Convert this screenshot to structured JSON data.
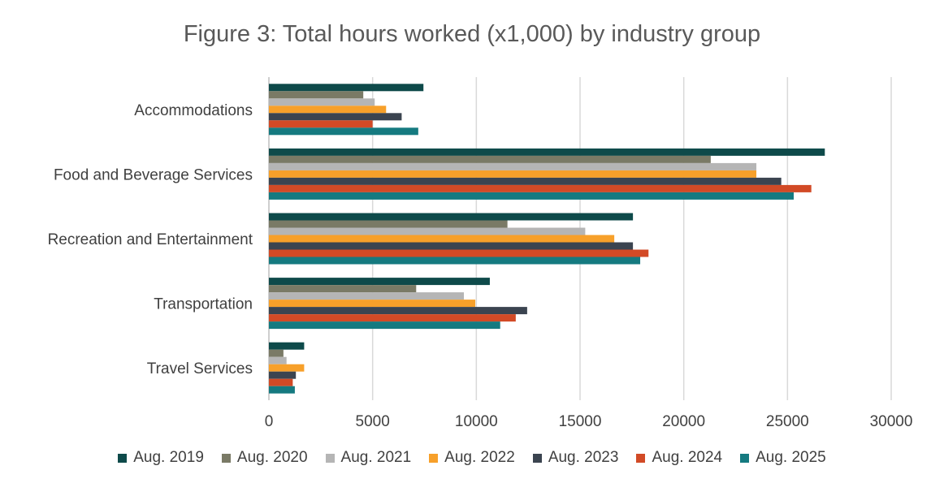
{
  "chart_data": {
    "type": "bar",
    "orientation": "horizontal",
    "title": "Figure 3: Total hours worked (x1,000) by industry group",
    "xlabel": "",
    "ylabel": "",
    "categories": [
      "Accommodations",
      "Food and Beverage Services",
      "Recreation and Entertainment",
      "Transportation",
      "Travel Services"
    ],
    "xlim": [
      0,
      30000
    ],
    "xticks": [
      0,
      5000,
      10000,
      15000,
      20000,
      25000,
      30000
    ],
    "grid": true,
    "legend_position": "bottom",
    "series": [
      {
        "name": "Aug. 2019",
        "color": "#0e4a4a",
        "values": [
          7450,
          26800,
          17550,
          10650,
          1700
        ]
      },
      {
        "name": "Aug. 2020",
        "color": "#7a7a66",
        "values": [
          4550,
          21300,
          11500,
          7100,
          700
        ]
      },
      {
        "name": "Aug. 2021",
        "color": "#b5b5b5",
        "values": [
          5100,
          23500,
          15250,
          9400,
          850
        ]
      },
      {
        "name": "Aug. 2022",
        "color": "#f7a02a",
        "values": [
          5650,
          23500,
          16650,
          9950,
          1700
        ]
      },
      {
        "name": "Aug. 2023",
        "color": "#3b4450",
        "values": [
          6400,
          24700,
          17550,
          12450,
          1300
        ]
      },
      {
        "name": "Aug. 2024",
        "color": "#d24a26",
        "values": [
          5000,
          26150,
          18300,
          11900,
          1150
        ]
      },
      {
        "name": "Aug. 2025",
        "color": "#157a80",
        "values": [
          7200,
          25300,
          17900,
          11150,
          1250
        ]
      }
    ]
  }
}
